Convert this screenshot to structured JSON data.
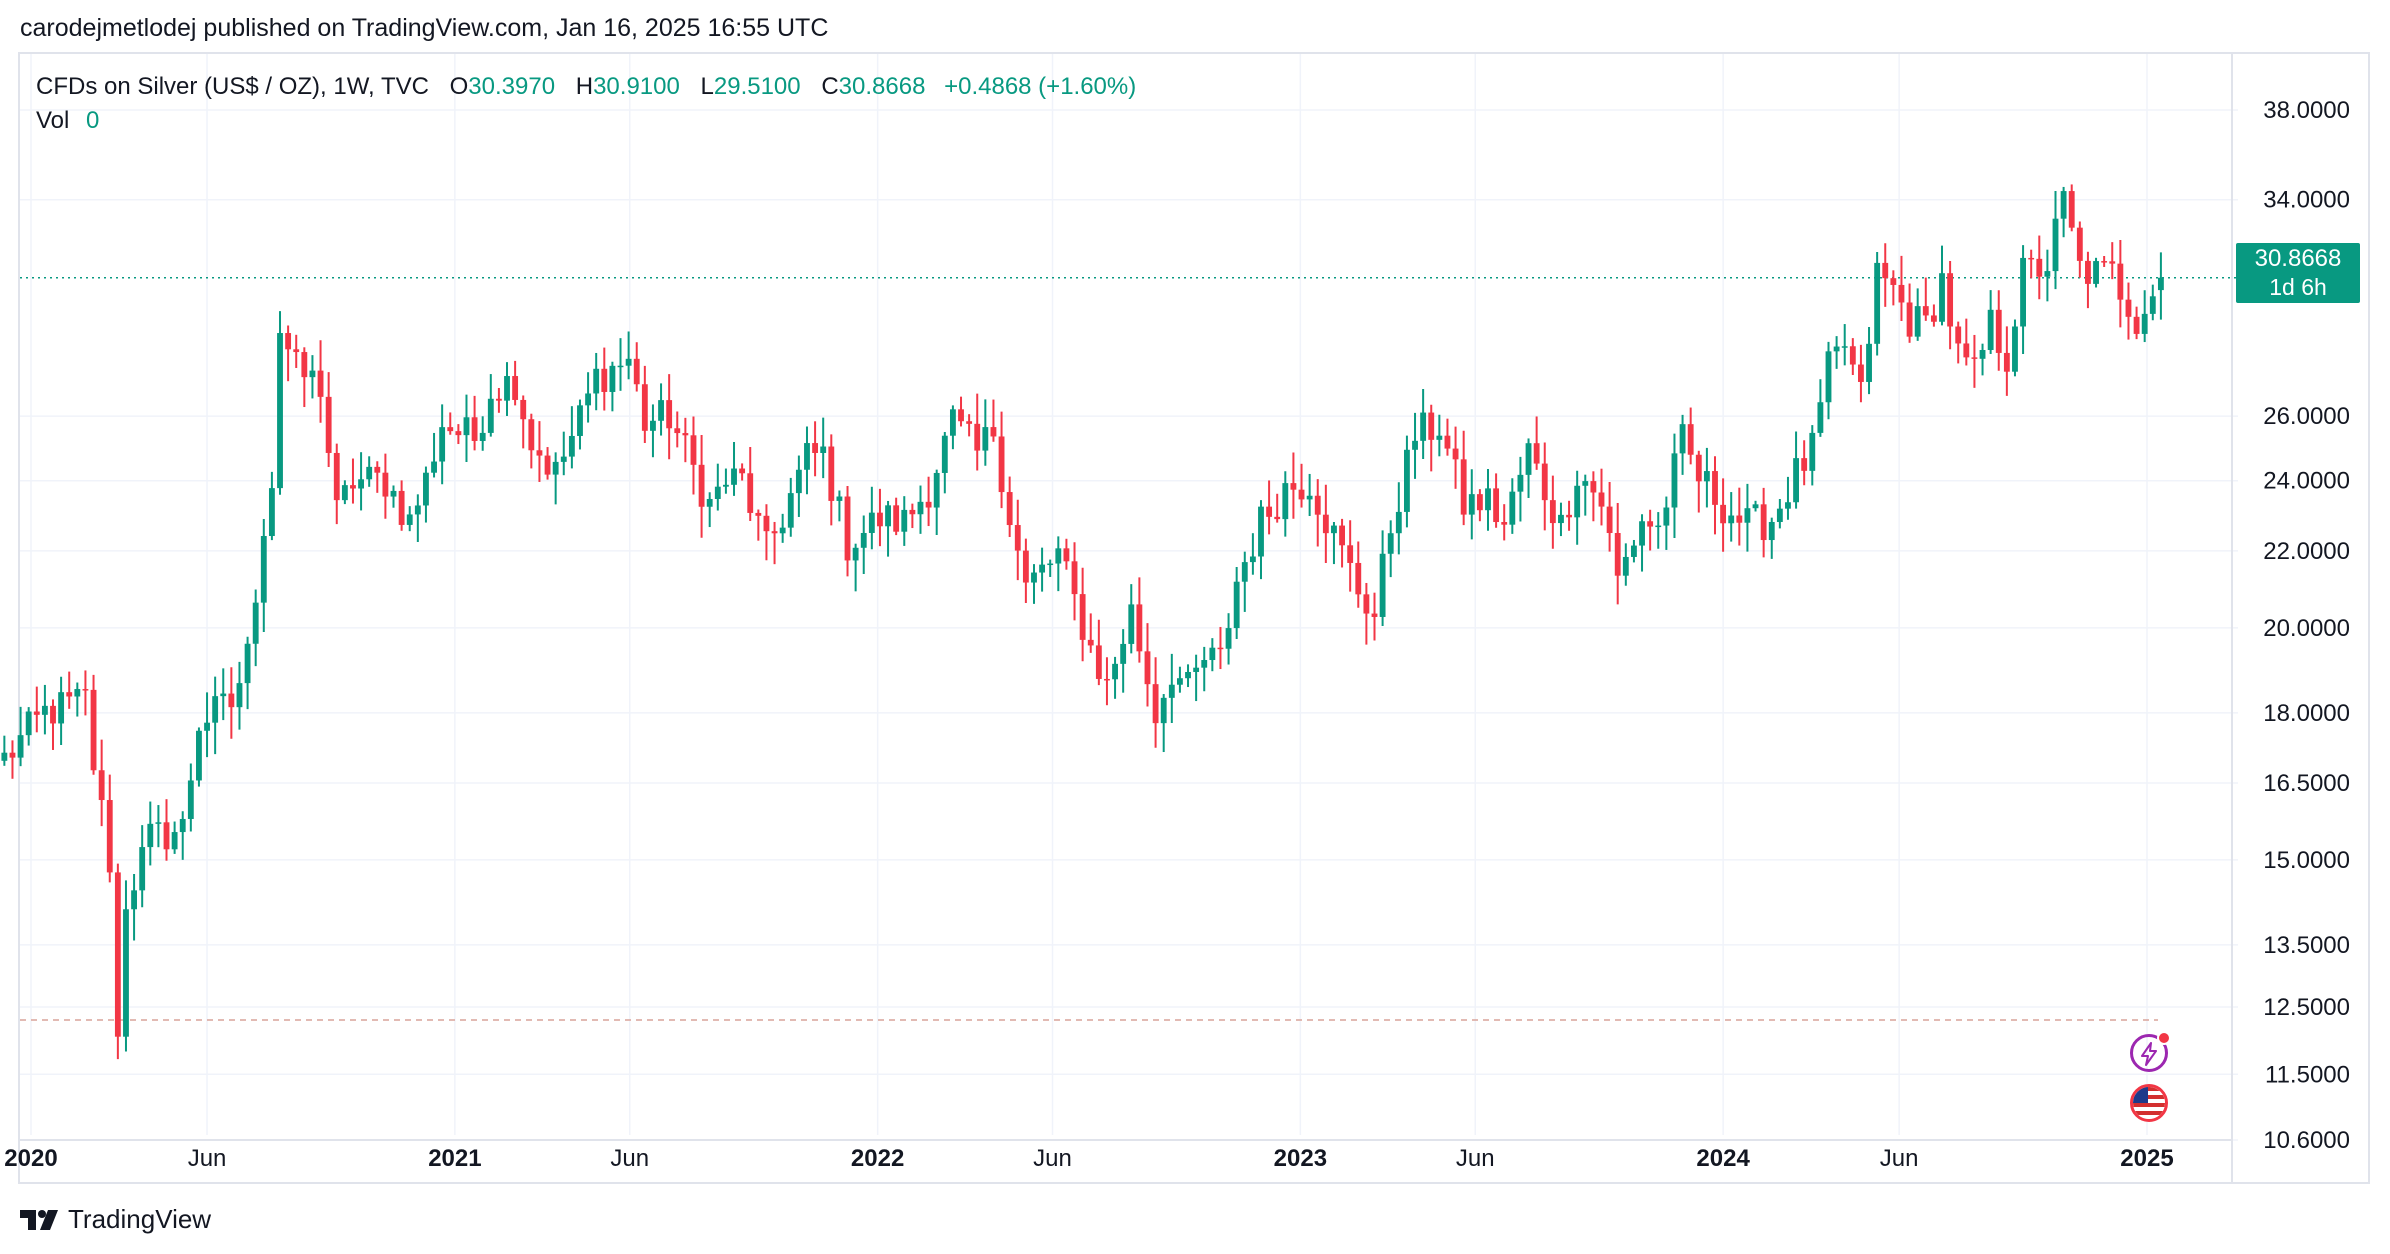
{
  "header": {
    "publisher_line": "carodejmetlodej published on TradingView.com, Jan 16, 2025 16:55 UTC"
  },
  "legend": {
    "symbol": "CFDs on Silver (US$ / OZ), 1W, TVC",
    "open_label": "O",
    "open": "30.3970",
    "high_label": "H",
    "high": "30.9100",
    "low_label": "L",
    "low": "29.5100",
    "close_label": "C",
    "close": "30.8668",
    "change": "+0.4868 (+1.60%)",
    "vol_label": "Vol",
    "vol_value": "0"
  },
  "price_tag": {
    "price": "30.8668",
    "countdown": "1d 6h",
    "color": "#089981"
  },
  "brand": {
    "name": "TradingView"
  },
  "icons": {
    "alert": "lightning-icon",
    "flag": "us-flag-icon"
  },
  "colors": {
    "up": "#089981",
    "down": "#f23645",
    "grid": "#f0f3fa",
    "axis_text": "#131722"
  },
  "chart_data": {
    "type": "candlestick",
    "symbol": "CFDs on Silver (US$ / OZ)",
    "interval": "1W",
    "scale": "log",
    "ylim": [
      10.2,
      40.5
    ],
    "y_ticks": [
      "38.0000",
      "34.0000",
      "26.0000",
      "24.0000",
      "22.0000",
      "20.0000",
      "18.0000",
      "16.5000",
      "15.0000",
      "13.5000",
      "12.5000",
      "11.5000",
      "10.6000"
    ],
    "x_ticks": [
      {
        "label": "2020",
        "bold": true,
        "date": "2020-01-01"
      },
      {
        "label": "Jun",
        "bold": false,
        "date": "2020-06-01"
      },
      {
        "label": "2021",
        "bold": true,
        "date": "2021-01-01"
      },
      {
        "label": "Jun",
        "bold": false,
        "date": "2021-06-01"
      },
      {
        "label": "2022",
        "bold": true,
        "date": "2022-01-01"
      },
      {
        "label": "Jun",
        "bold": false,
        "date": "2022-06-01"
      },
      {
        "label": "2023",
        "bold": true,
        "date": "2023-01-01"
      },
      {
        "label": "Jun",
        "bold": false,
        "date": "2023-06-01"
      },
      {
        "label": "2024",
        "bold": true,
        "date": "2024-01-01"
      },
      {
        "label": "Jun",
        "bold": false,
        "date": "2024-06-01"
      },
      {
        "label": "2025",
        "bold": true,
        "date": "2025-01-01"
      }
    ],
    "last_price": 30.8668,
    "low_marker": 12.3,
    "grid": true,
    "anchors": [
      [
        "2019-12-09",
        17.0
      ],
      [
        "2020-01-13",
        18.0
      ],
      [
        "2020-02-17",
        18.3
      ],
      [
        "2020-02-24",
        16.9
      ],
      [
        "2020-03-09",
        15.0
      ],
      [
        "2020-03-16",
        12.0
      ],
      [
        "2020-03-23",
        14.3
      ],
      [
        "2020-04-13",
        15.4
      ],
      [
        "2020-05-11",
        15.6
      ],
      [
        "2020-05-25",
        17.8
      ],
      [
        "2020-06-22",
        18.2
      ],
      [
        "2020-07-06",
        19.3
      ],
      [
        "2020-07-20",
        22.8
      ],
      [
        "2020-07-27",
        24.0
      ],
      [
        "2020-08-03",
        29.0
      ],
      [
        "2020-08-17",
        27.5
      ],
      [
        "2020-09-07",
        27.0
      ],
      [
        "2020-09-21",
        23.0
      ],
      [
        "2020-10-05",
        24.0
      ],
      [
        "2020-11-02",
        24.0
      ],
      [
        "2020-11-23",
        22.8
      ],
      [
        "2020-12-07",
        24.0
      ],
      [
        "2020-12-21",
        25.8
      ],
      [
        "2021-01-04",
        25.5
      ],
      [
        "2021-01-18",
        25.3
      ],
      [
        "2021-02-01",
        26.9
      ],
      [
        "2021-02-22",
        27.2
      ],
      [
        "2021-03-08",
        25.2
      ],
      [
        "2021-03-29",
        24.2
      ],
      [
        "2021-04-19",
        25.9
      ],
      [
        "2021-05-03",
        27.3
      ],
      [
        "2021-05-31",
        27.9
      ],
      [
        "2021-06-14",
        25.8
      ],
      [
        "2021-07-05",
        26.0
      ],
      [
        "2021-08-09",
        23.3
      ],
      [
        "2021-08-23",
        24.0
      ],
      [
        "2021-09-06",
        24.0
      ],
      [
        "2021-09-27",
        22.0
      ],
      [
        "2021-10-11",
        23.0
      ],
      [
        "2021-11-01",
        24.7
      ],
      [
        "2021-11-15",
        24.8
      ],
      [
        "2021-12-06",
        22.2
      ],
      [
        "2022-01-03",
        22.9
      ],
      [
        "2022-01-24",
        22.8
      ],
      [
        "2022-02-14",
        23.8
      ],
      [
        "2022-03-07",
        25.8
      ],
      [
        "2022-03-28",
        24.8
      ],
      [
        "2022-04-11",
        25.6
      ],
      [
        "2022-04-25",
        23.0
      ],
      [
        "2022-05-09",
        21.0
      ],
      [
        "2022-06-06",
        21.9
      ],
      [
        "2022-07-04",
        19.5
      ],
      [
        "2022-07-18",
        18.6
      ],
      [
        "2022-08-08",
        20.4
      ],
      [
        "2022-08-29",
        18.0
      ],
      [
        "2022-09-12",
        19.0
      ],
      [
        "2022-09-26",
        18.5
      ],
      [
        "2022-10-10",
        19.2
      ],
      [
        "2022-10-24",
        19.2
      ],
      [
        "2022-11-07",
        21.2
      ],
      [
        "2022-11-28",
        22.8
      ],
      [
        "2022-12-19",
        23.8
      ],
      [
        "2023-01-09",
        24.0
      ],
      [
        "2023-01-30",
        22.4
      ],
      [
        "2023-02-20",
        21.0
      ],
      [
        "2023-03-06",
        20.3
      ],
      [
        "2023-03-20",
        22.7
      ],
      [
        "2023-04-10",
        25.4
      ],
      [
        "2023-05-01",
        25.7
      ],
      [
        "2023-05-22",
        23.3
      ],
      [
        "2023-06-12",
        23.4
      ],
      [
        "2023-06-26",
        22.7
      ],
      [
        "2023-07-17",
        24.9
      ],
      [
        "2023-07-31",
        23.7
      ],
      [
        "2023-08-14",
        22.7
      ],
      [
        "2023-08-28",
        24.3
      ],
      [
        "2023-09-18",
        23.4
      ],
      [
        "2023-10-02",
        21.2
      ],
      [
        "2023-10-23",
        22.9
      ],
      [
        "2023-11-06",
        22.6
      ],
      [
        "2023-11-27",
        25.2
      ],
      [
        "2023-12-11",
        24.1
      ],
      [
        "2024-01-01",
        23.3
      ],
      [
        "2024-01-22",
        22.7
      ],
      [
        "2024-02-12",
        22.9
      ],
      [
        "2024-03-04",
        24.2
      ],
      [
        "2024-03-18",
        24.9
      ],
      [
        "2024-04-01",
        27.5
      ],
      [
        "2024-04-15",
        28.4
      ],
      [
        "2024-04-29",
        26.6
      ],
      [
        "2024-05-13",
        31.0
      ],
      [
        "2024-05-27",
        30.4
      ],
      [
        "2024-06-10",
        29.3
      ],
      [
        "2024-06-24",
        29.1
      ],
      [
        "2024-07-08",
        30.8
      ],
      [
        "2024-07-22",
        28.0
      ],
      [
        "2024-08-05",
        27.3
      ],
      [
        "2024-08-19",
        29.1
      ],
      [
        "2024-09-02",
        28.0
      ],
      [
        "2024-09-16",
        31.0
      ],
      [
        "2024-10-07",
        31.4
      ],
      [
        "2024-10-21",
        33.9
      ],
      [
        "2024-11-04",
        31.2
      ],
      [
        "2024-11-18",
        31.0
      ],
      [
        "2024-12-02",
        31.0
      ],
      [
        "2024-12-23",
        29.4
      ],
      [
        "2025-01-06",
        30.4
      ],
      [
        "2025-01-13",
        30.87
      ]
    ]
  }
}
